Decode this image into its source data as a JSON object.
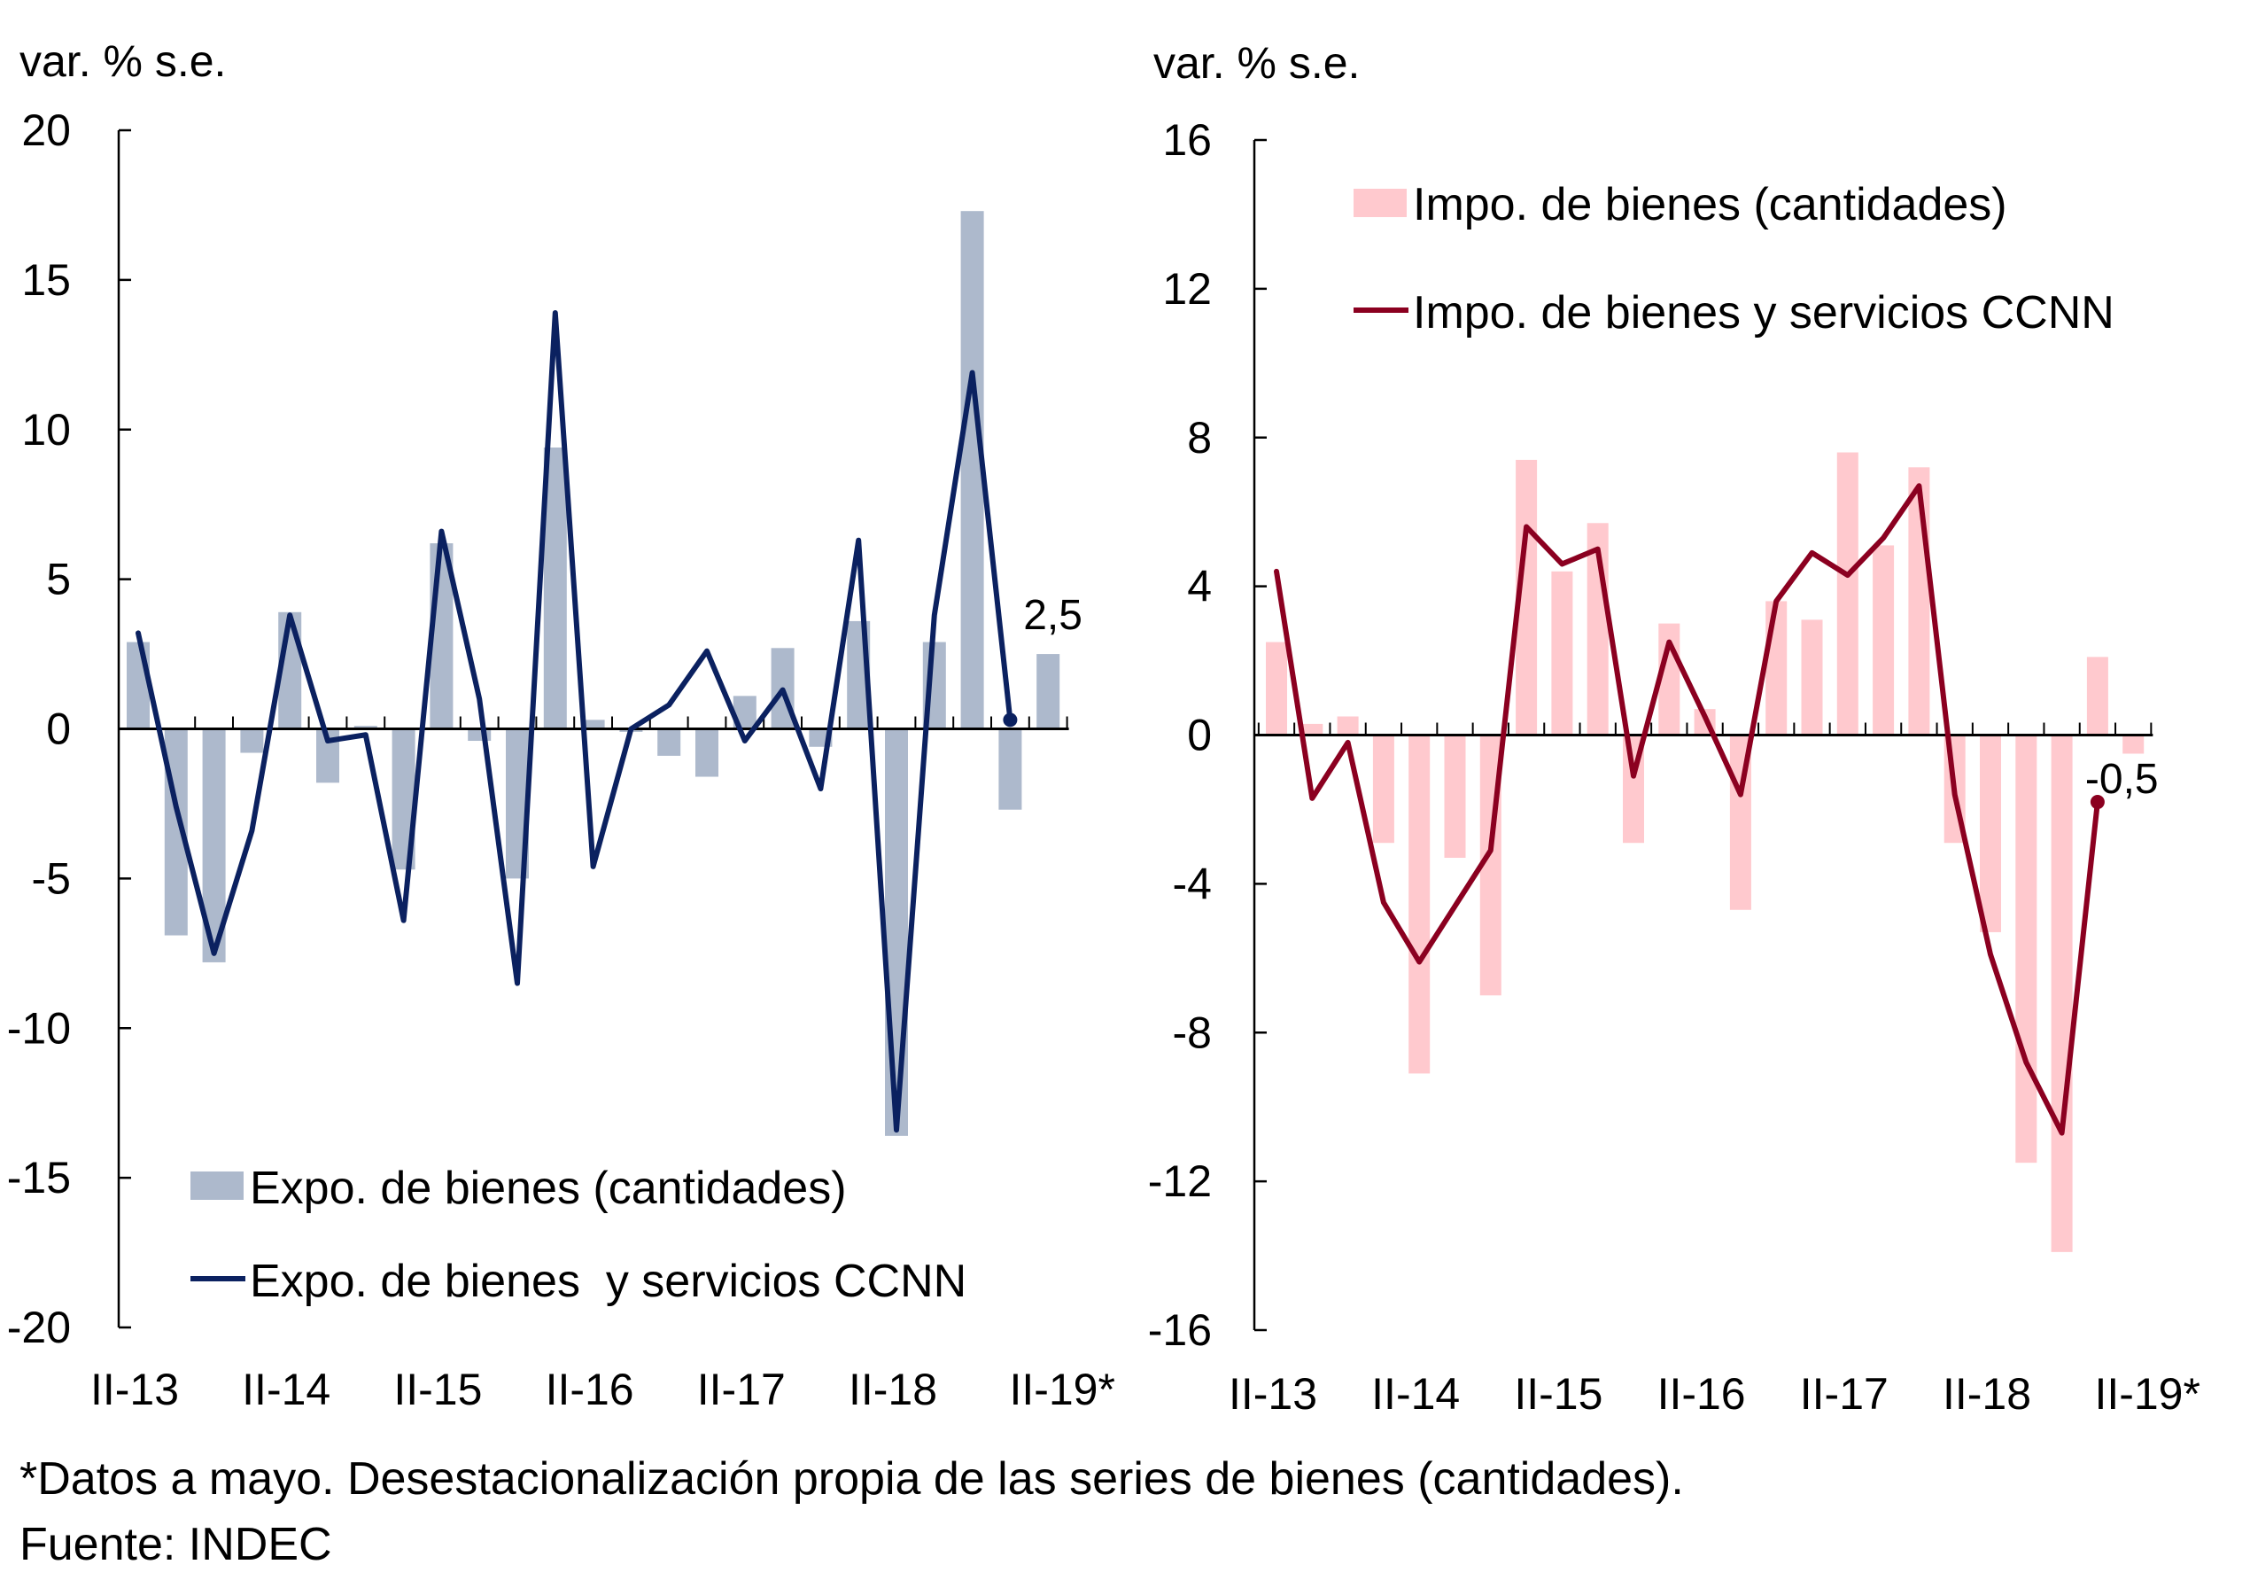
{
  "chart_data": [
    {
      "type": "bar+line",
      "title": "",
      "ylabel": "var. % s.e.",
      "xlabel": "",
      "ylim": [
        -20,
        20
      ],
      "yticks": [
        "20",
        "15",
        "10",
        "5",
        "0",
        "-5",
        "-10",
        "-15",
        "-20"
      ],
      "ytick_values": [
        20,
        15,
        10,
        5,
        0,
        -5,
        -10,
        -15,
        -20
      ],
      "xtick_labels": [
        "II-13",
        "II-14",
        "II-15",
        "II-16",
        "II-17",
        "II-18",
        "II-19*"
      ],
      "xtick_bar_index": [
        0,
        4,
        8,
        12,
        16,
        20,
        24
      ],
      "grid": false,
      "legend_position": "bottom-left",
      "series": [
        {
          "name": "Expo. de bienes (cantidades)",
          "kind": "bar",
          "color": "#ADB9CC",
          "values": [
            2.9,
            -6.9,
            -7.8,
            -0.8,
            3.9,
            -1.8,
            0.1,
            -4.7,
            6.2,
            -0.4,
            -5.0,
            9.4,
            0.3,
            -0.1,
            -0.9,
            -1.6,
            1.1,
            2.7,
            -0.6,
            3.6,
            -13.6,
            2.9,
            17.3,
            -2.7,
            2.5
          ]
        },
        {
          "name": "Expo. de bienes  y servicios CCNN",
          "kind": "line",
          "color": "#0B2160",
          "values": [
            3.2,
            -2.6,
            -7.5,
            -3.4,
            3.8,
            -0.4,
            -0.2,
            -6.4,
            6.6,
            1.0,
            -8.5,
            13.9,
            -4.6,
            0.0,
            0.8,
            2.6,
            -0.4,
            1.3,
            -2.0,
            6.3,
            -13.4,
            3.8,
            11.9,
            0.3
          ]
        }
      ],
      "annotations": [
        {
          "text": "2,5",
          "series": 1,
          "point_index": 23
        }
      ]
    },
    {
      "type": "bar+line",
      "title": "",
      "ylabel": "var. % s.e.",
      "xlabel": "",
      "ylim": [
        -16,
        16
      ],
      "yticks": [
        "16",
        "12",
        "8",
        "4",
        "0",
        "-4",
        "-8",
        "-12",
        "-16"
      ],
      "ytick_values": [
        16,
        12,
        8,
        4,
        0,
        -4,
        -8,
        -12,
        -16
      ],
      "xtick_labels": [
        "II-13",
        "II-14",
        "II-15",
        "II-16",
        "II-17",
        "II-18",
        "II-19*"
      ],
      "xtick_bar_index": [
        0,
        4,
        8,
        12,
        16,
        20,
        24
      ],
      "grid": false,
      "legend_position": "top-left",
      "series": [
        {
          "name": "Impo. de bienes (cantidades)",
          "kind": "bar",
          "color": "#FFC9CE",
          "values": [
            2.5,
            0.3,
            0.5,
            -2.9,
            -9.1,
            -3.3,
            -7.0,
            7.4,
            4.4,
            5.7,
            -2.9,
            3.0,
            0.7,
            -4.7,
            3.6,
            3.1,
            7.6,
            5.1,
            7.2,
            -2.9,
            -5.3,
            -11.5,
            -13.9,
            2.1,
            -0.5
          ]
        },
        {
          "name": "Impo. de bienes y servicios CCNN",
          "kind": "line",
          "color": "#8B0020",
          "values": [
            4.4,
            -1.7,
            -0.2,
            -4.5,
            -6.1,
            -4.6,
            -3.1,
            5.6,
            4.6,
            5.0,
            -1.1,
            2.5,
            0.5,
            -1.6,
            3.6,
            4.9,
            4.3,
            5.3,
            6.7,
            -1.6,
            -5.9,
            -8.8,
            -10.7,
            -1.8
          ]
        }
      ],
      "annotations": [
        {
          "text": "-0,5",
          "series": 1,
          "point_index": 23
        }
      ]
    }
  ],
  "footer": {
    "note": "*Datos a mayo. Desestacionalización propia de las series de bienes (cantidades).",
    "source": "Fuente: INDEC"
  }
}
